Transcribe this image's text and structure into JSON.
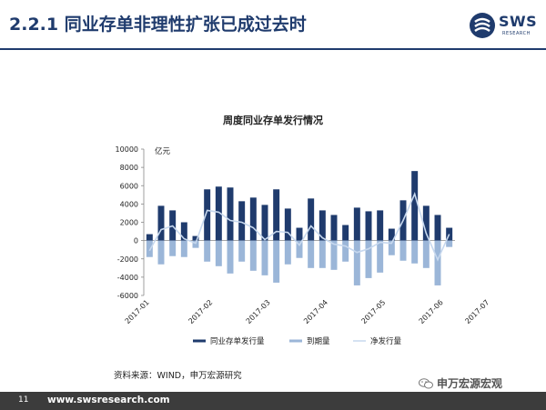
{
  "header": {
    "title": "2.2.1 同业存单非理性扩张已成过去时",
    "logo_text": "SWS",
    "logo_sub": "RESEARCH"
  },
  "colors": {
    "accent": "#1f3b6d",
    "issuance": "#1f3b6d",
    "maturity": "#9bb6d8",
    "net": "#c7d8ee"
  },
  "chart_data": {
    "type": "bar",
    "title": "周度同业存单发行情况",
    "unit_label": "亿元",
    "ylim": [
      -6000,
      10000
    ],
    "yticks": [
      -6000,
      -4000,
      -2000,
      0,
      2000,
      4000,
      6000,
      8000,
      10000
    ],
    "x_tick_labels": [
      "2017-01",
      "2017-02",
      "2017-03",
      "2017-04",
      "2017-05",
      "2017-06",
      "2017-07"
    ],
    "x_tick_positions": [
      0,
      5.5,
      10.5,
      15.5,
      20.5,
      25.5,
      29.5
    ],
    "grid": false,
    "legend_position": "bottom",
    "series": [
      {
        "name": "同业存单发行量",
        "type": "bar",
        "values": [
          700,
          3800,
          3300,
          2000,
          500,
          5600,
          5900,
          5800,
          4300,
          4700,
          3900,
          5600,
          3500,
          1400,
          4600,
          3300,
          2800,
          1700,
          3600,
          3200,
          3300,
          1300,
          4400,
          7600,
          3800,
          2800,
          1400
        ]
      },
      {
        "name": "到期量",
        "type": "bar",
        "values": [
          -1800,
          -2600,
          -1700,
          -1800,
          -800,
          -2300,
          -2800,
          -3600,
          -2300,
          -3300,
          -3800,
          -4600,
          -2600,
          -1900,
          -3000,
          -3000,
          -3200,
          -2300,
          -4900,
          -4100,
          -3500,
          -1600,
          -2200,
          -2500,
          -3000,
          -4900,
          -700
        ]
      },
      {
        "name": "净发行量",
        "type": "line",
        "values": [
          -1100,
          1200,
          1600,
          200,
          -300,
          3300,
          3100,
          2200,
          2000,
          1400,
          100,
          1000,
          900,
          -500,
          1600,
          300,
          -400,
          -600,
          -1300,
          -900,
          -200,
          -300,
          2200,
          5100,
          800,
          -2100,
          700
        ]
      }
    ]
  },
  "source_text": "资料来源：WIND，申万宏源研究",
  "watermark_text": "申万宏源宏观",
  "footer": {
    "page_number": "11",
    "url": "www.swsresearch.com"
  }
}
